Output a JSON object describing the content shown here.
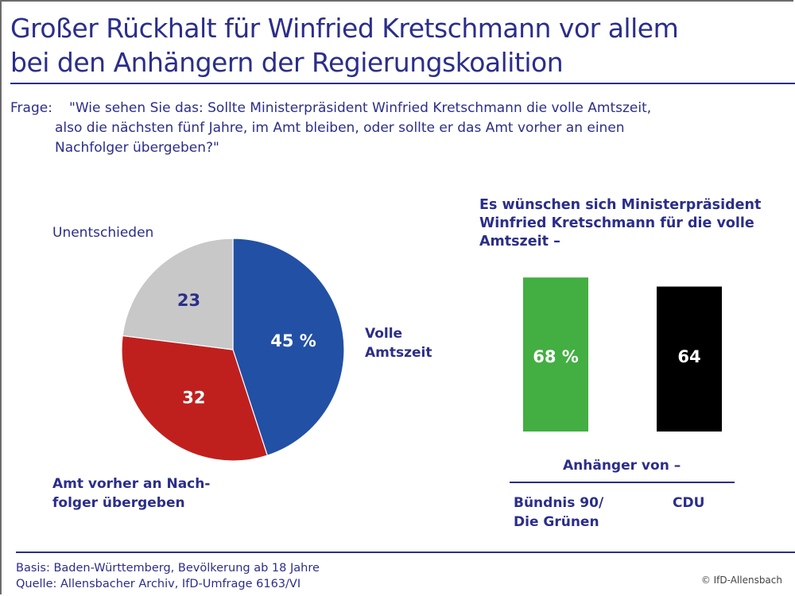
{
  "header": {
    "title_line1": "Großer Rückhalt für Winfried Kretschmann vor allem",
    "title_line2": "bei den Anhängern der Regierungskoalition"
  },
  "question": {
    "label": "Frage:",
    "line1": "\"Wie sehen Sie das: Sollte Ministerpräsident Winfried Kretschmann die volle Amtszeit,",
    "line2": "also die nächsten fünf Jahre, im Amt bleiben, oder sollte er das Amt vorher an einen",
    "line3": "Nachfolger übergeben?\""
  },
  "colors": {
    "text": "#2b2e8a",
    "pie_blue": "#2250a5",
    "pie_red": "#c0201d",
    "pie_grey": "#c8c8c8",
    "bar_green": "#43ae42",
    "bar_black": "#000000"
  },
  "chart_data": [
    {
      "type": "pie",
      "title": "",
      "unit": "%",
      "slices": [
        {
          "label": "Volle Amtszeit",
          "label_lines": [
            "Volle",
            "Amtszeit"
          ],
          "value": 45,
          "display": "45 %",
          "color": "#2250a5"
        },
        {
          "label": "Amt vorher an Nachfolger übergeben",
          "label_lines": [
            "Amt vorher an Nach-",
            "folger übergeben"
          ],
          "value": 32,
          "display": "32",
          "color": "#c0201d"
        },
        {
          "label": "Unentschieden",
          "label_lines": [
            "Unentschieden"
          ],
          "value": 23,
          "display": "23",
          "color": "#c8c8c8"
        }
      ]
    },
    {
      "type": "bar",
      "title_lines": [
        "Es wünschen sich Ministerpräsident",
        "Winfried Kretschmann für die volle",
        "Amtszeit –"
      ],
      "xlabel": "Anhänger von –",
      "ylabel": "",
      "ylim": [
        0,
        100
      ],
      "unit": "%",
      "categories": [
        "Bündnis 90/ Die Grünen",
        "CDU"
      ],
      "category_lines": [
        [
          "Bündnis 90/",
          "Die Grünen"
        ],
        [
          "CDU"
        ]
      ],
      "values": [
        68,
        64
      ],
      "display": [
        "68 %",
        "64"
      ],
      "colors": [
        "#43ae42",
        "#000000"
      ]
    }
  ],
  "footer": {
    "basis": "Basis: Baden-Württemberg, Bevölkerung ab 18 Jahre",
    "source": "Quelle: Allensbacher Archiv, IfD-Umfrage 6163/VI",
    "copyright": "© IfD-Allensbach"
  }
}
